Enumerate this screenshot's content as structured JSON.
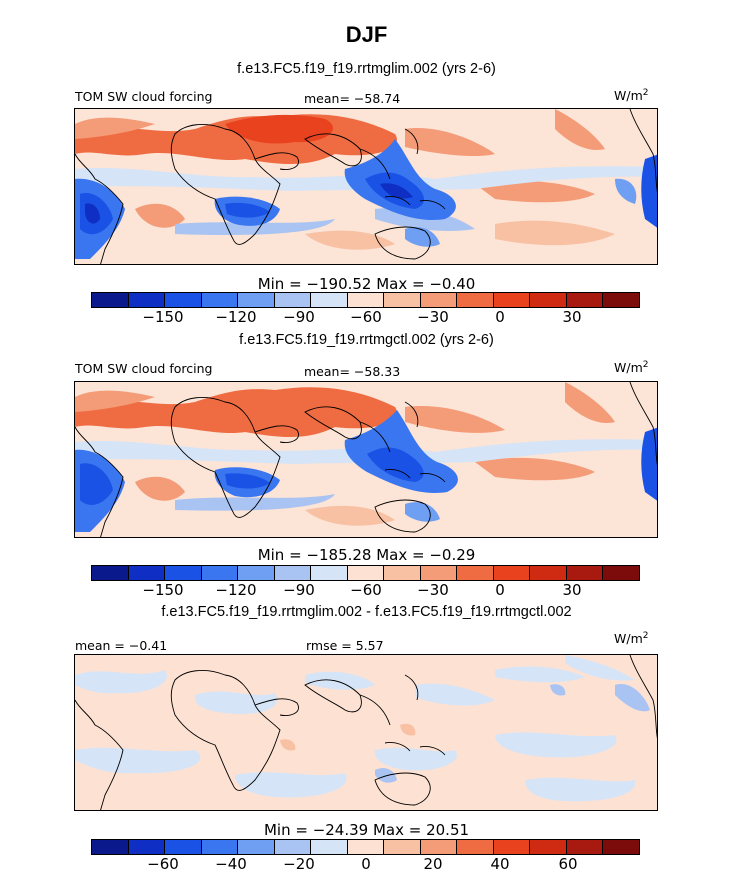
{
  "season_title": "DJF",
  "colors": {
    "palette": [
      "#0a1a8c",
      "#0f2fc4",
      "#1a52e6",
      "#3a76f0",
      "#6f9ff2",
      "#a9c4f2",
      "#d6e4f7",
      "#fde2d3",
      "#f9c1a4",
      "#f49b78",
      "#ef6c43",
      "#e8421f",
      "#cf2a12",
      "#a81a10",
      "#7c0b0b"
    ],
    "land_line": "#000000"
  },
  "panels": [
    {
      "case_title": "f.e13.FC5.f19_f19.rrtmglim.002 (yrs 2-6)",
      "left_label": "TOM SW cloud forcing",
      "center_label": "mean= −58.74",
      "units": "W/m",
      "units_sup": "2",
      "min_max": "Min = −190.52 Max =  −0.40",
      "ticks": [
        "−150",
        "−120",
        "−90",
        "−60",
        "−30",
        "0",
        "30"
      ]
    },
    {
      "case_title": "f.e13.FC5.f19_f19.rrtmgctl.002 (yrs 2-6)",
      "left_label": "TOM SW cloud forcing",
      "center_label": "mean= −58.33",
      "units": "W/m",
      "units_sup": "2",
      "min_max": "Min = −185.28 Max =  −0.29",
      "ticks": [
        "−150",
        "−120",
        "−90",
        "−60",
        "−30",
        "0",
        "30"
      ]
    },
    {
      "case_title": "f.e13.FC5.f19_f19.rrtmglim.002 - f.e13.FC5.f19_f19.rrtmgctl.002",
      "left_label": "mean = −0.41",
      "center_label": "rmse =  5.57",
      "units": "W/m",
      "units_sup": "2",
      "min_max": "Min = −24.39 Max =  20.51",
      "ticks": [
        "−60",
        "−40",
        "−20",
        "0",
        "20",
        "40",
        "60"
      ]
    }
  ]
}
